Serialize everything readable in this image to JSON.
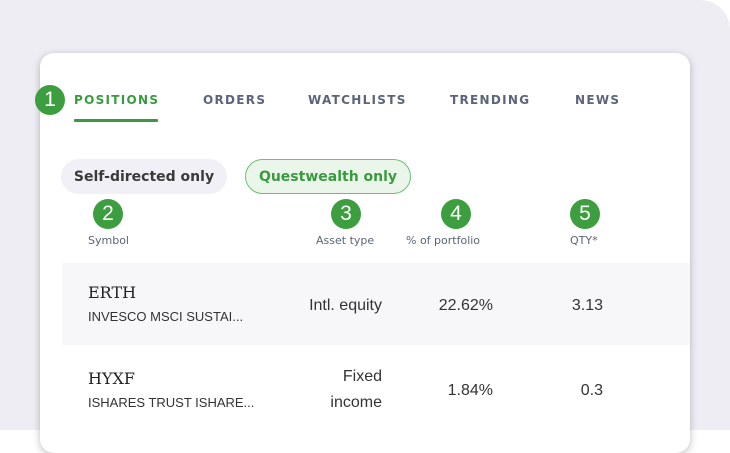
{
  "tabs": [
    {
      "label": "POSITIONS",
      "active": true
    },
    {
      "label": "ORDERS"
    },
    {
      "label": "WATCHLISTS"
    },
    {
      "label": "TRENDING"
    },
    {
      "label": "NEWS"
    }
  ],
  "filters": {
    "self_directed": "Self-directed only",
    "questwealth": "Questwealth only",
    "selected": "Questwealth only"
  },
  "columns": {
    "symbol": "Symbol",
    "asset_type": "Asset type",
    "percent": "% of portfolio",
    "qty": "QTY*"
  },
  "rows": [
    {
      "symbol": "ERTH",
      "name": "INVESCO MSCI SUSTAI...",
      "asset_type": "Intl. equity",
      "percent": "22.62%",
      "qty": "3.13"
    },
    {
      "symbol": "HYXF",
      "name": "ISHARES TRUST ISHARE...",
      "asset_type_line1": "Fixed",
      "asset_type_line2": "income",
      "percent": "1.84%",
      "qty": "0.3"
    }
  ],
  "badges": [
    "1",
    "2",
    "3",
    "4",
    "5"
  ],
  "colors": {
    "accent": "#3a9a3f",
    "badge": "#3c9e3f"
  }
}
